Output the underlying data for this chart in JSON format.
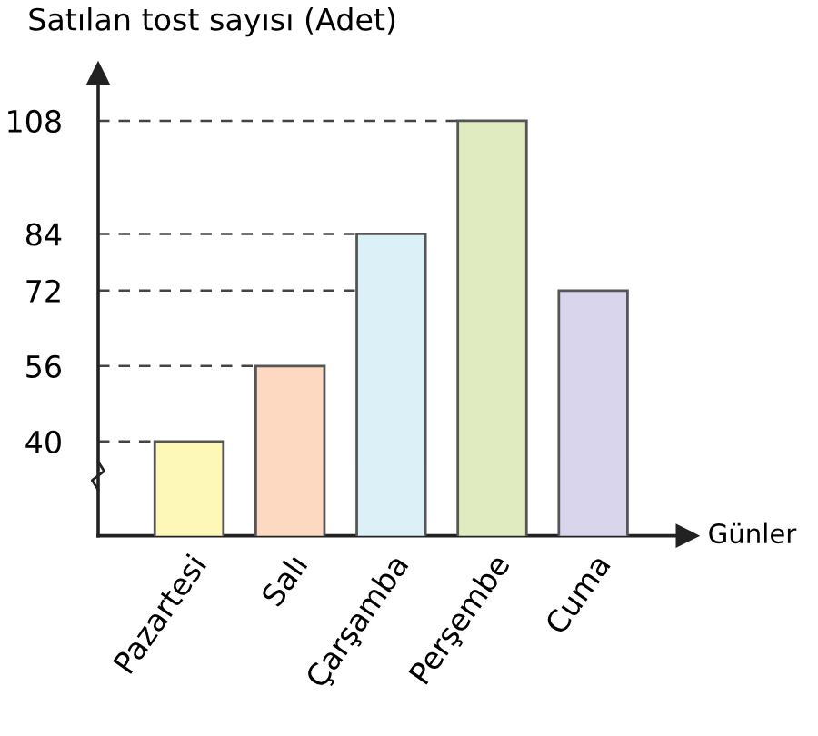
{
  "chart_data": {
    "type": "bar",
    "ylabel": "Satılan tost sayısı (Adet)",
    "xlabel": "Günler",
    "categories": [
      "Pazartesi",
      "Salı",
      "Çarşamba",
      "Perşembe",
      "Cuma"
    ],
    "values": [
      40,
      56,
      84,
      108,
      72
    ],
    "colors": [
      "#fdf8b8",
      "#fcd9c0",
      "#dcf0f7",
      "#e0ecc0",
      "#d9d5ec"
    ],
    "ylim": [
      20,
      118
    ],
    "yticks": [
      40,
      56,
      72,
      84,
      108
    ],
    "grid": false,
    "ref_lines": [
      {
        "axis": "y",
        "value": 40,
        "line_style": "dashed"
      },
      {
        "axis": "y",
        "value": 56,
        "line_style": "dashed"
      },
      {
        "axis": "y",
        "value": 72,
        "line_style": "dashed"
      },
      {
        "axis": "y",
        "value": 84,
        "line_style": "dashed"
      },
      {
        "axis": "y",
        "value": 108,
        "line_style": "dashed"
      }
    ]
  }
}
